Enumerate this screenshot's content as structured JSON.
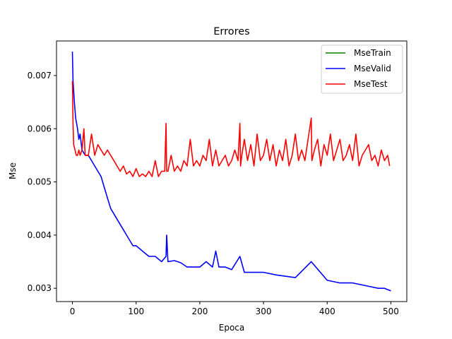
{
  "chart_data": {
    "type": "line",
    "title": "Errores",
    "xlabel": "Epoca",
    "ylabel": "Mse",
    "xlim": [
      -25,
      525
    ],
    "ylim": [
      0.00275,
      0.00765
    ],
    "xticks": [
      0,
      100,
      200,
      300,
      400,
      500
    ],
    "xtick_labels": [
      "0",
      "100",
      "200",
      "300",
      "400",
      "500"
    ],
    "yticks": [
      0.003,
      0.004,
      0.005,
      0.006,
      0.007
    ],
    "ytick_labels": [
      "0.003",
      "0.004",
      "0.005",
      "0.006",
      "0.007"
    ],
    "grid": false,
    "legend_position": "top-right",
    "series": [
      {
        "name": "MseTrain",
        "color": "#008000",
        "x": [],
        "y": []
      },
      {
        "name": "MseValid",
        "color": "#0000ff",
        "x": [
          0,
          1,
          3,
          5,
          8,
          10,
          12,
          15,
          20,
          25,
          30,
          35,
          40,
          45,
          50,
          55,
          60,
          65,
          70,
          75,
          80,
          85,
          90,
          95,
          100,
          110,
          120,
          130,
          140,
          147,
          148,
          150,
          160,
          170,
          180,
          200,
          210,
          220,
          225,
          230,
          240,
          250,
          263,
          270,
          290,
          300,
          320,
          350,
          375,
          400,
          420,
          440,
          460,
          480,
          490,
          500
        ],
        "y": [
          0.00745,
          0.0069,
          0.0065,
          0.0062,
          0.006,
          0.0058,
          0.0059,
          0.0056,
          0.0055,
          0.0055,
          0.0054,
          0.0053,
          0.0052,
          0.0051,
          0.0049,
          0.0047,
          0.0045,
          0.0044,
          0.0043,
          0.0042,
          0.0041,
          0.004,
          0.0039,
          0.0038,
          0.0038,
          0.0037,
          0.0036,
          0.0036,
          0.0035,
          0.0036,
          0.004,
          0.0035,
          0.00352,
          0.00348,
          0.0034,
          0.0034,
          0.0035,
          0.0034,
          0.0037,
          0.0034,
          0.0034,
          0.00335,
          0.0036,
          0.0033,
          0.0033,
          0.0033,
          0.00325,
          0.0032,
          0.0035,
          0.00315,
          0.0031,
          0.0031,
          0.00305,
          0.003,
          0.003,
          0.00295
        ]
      },
      {
        "name": "MseTest",
        "color": "#ff0000",
        "x": [
          0,
          1,
          2,
          4,
          6,
          8,
          10,
          12,
          15,
          18,
          20,
          25,
          30,
          35,
          40,
          45,
          50,
          55,
          60,
          65,
          70,
          75,
          80,
          85,
          90,
          95,
          100,
          105,
          110,
          115,
          120,
          125,
          130,
          135,
          140,
          145,
          147,
          148,
          150,
          155,
          160,
          165,
          170,
          175,
          180,
          185,
          190,
          195,
          200,
          205,
          210,
          215,
          220,
          225,
          230,
          235,
          240,
          245,
          250,
          255,
          260,
          263,
          264,
          266,
          270,
          275,
          280,
          285,
          290,
          295,
          300,
          305,
          310,
          315,
          320,
          325,
          330,
          335,
          340,
          345,
          350,
          355,
          360,
          365,
          370,
          375,
          376,
          380,
          385,
          390,
          395,
          400,
          405,
          410,
          415,
          420,
          425,
          430,
          435,
          440,
          445,
          450,
          455,
          460,
          465,
          470,
          475,
          480,
          485,
          490,
          495,
          498
        ],
        "y": [
          0.0069,
          0.0061,
          0.0057,
          0.0056,
          0.0055,
          0.0055,
          0.0056,
          0.0055,
          0.0056,
          0.006,
          0.0055,
          0.0055,
          0.0059,
          0.0055,
          0.0057,
          0.0056,
          0.0055,
          0.0056,
          0.0055,
          0.0054,
          0.0053,
          0.0052,
          0.0053,
          0.00515,
          0.0052,
          0.0051,
          0.00525,
          0.0051,
          0.00515,
          0.0051,
          0.0052,
          0.0051,
          0.0054,
          0.0051,
          0.0052,
          0.0052,
          0.0061,
          0.0052,
          0.0052,
          0.0055,
          0.0052,
          0.0053,
          0.0052,
          0.0054,
          0.0053,
          0.0058,
          0.0053,
          0.0054,
          0.0053,
          0.0055,
          0.0054,
          0.0058,
          0.0053,
          0.0056,
          0.0053,
          0.0054,
          0.0055,
          0.0053,
          0.0054,
          0.0056,
          0.0054,
          0.0061,
          0.0053,
          0.0055,
          0.0058,
          0.0054,
          0.0057,
          0.0053,
          0.0059,
          0.0054,
          0.0055,
          0.0058,
          0.0054,
          0.0057,
          0.0053,
          0.0056,
          0.0054,
          0.0058,
          0.0053,
          0.0055,
          0.0059,
          0.0054,
          0.0056,
          0.0054,
          0.0058,
          0.0062,
          0.0054,
          0.0056,
          0.0058,
          0.0053,
          0.0057,
          0.0055,
          0.0059,
          0.0054,
          0.0056,
          0.0058,
          0.0054,
          0.0055,
          0.0057,
          0.0054,
          0.0059,
          0.0053,
          0.0055,
          0.0056,
          0.0057,
          0.0054,
          0.0055,
          0.0053,
          0.0056,
          0.0054,
          0.0055,
          0.0053
        ]
      }
    ]
  }
}
